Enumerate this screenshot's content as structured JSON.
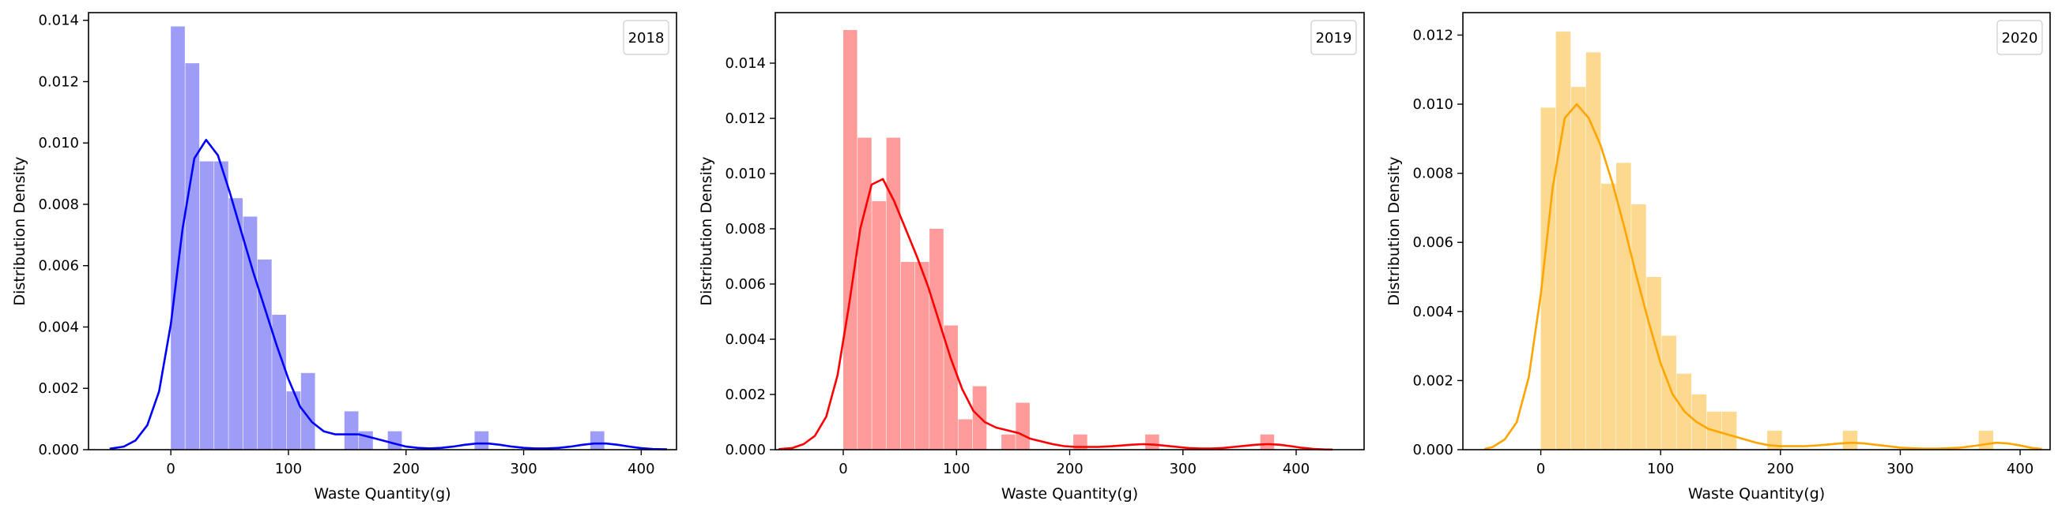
{
  "chart_data": [
    {
      "type": "bar",
      "legend": "2018",
      "legend_position": "top-right",
      "xlabel": "Waste Quantity(g)",
      "ylabel": "Distribution Density",
      "xlim": [
        -70,
        430
      ],
      "ylim": [
        0,
        0.01425
      ],
      "xticks": [
        0,
        100,
        200,
        300,
        400
      ],
      "yticks": [
        0.0,
        0.002,
        0.004,
        0.006,
        0.008,
        0.01,
        0.012,
        0.014
      ],
      "ytick_labels": [
        "0.000",
        "0.002",
        "0.004",
        "0.006",
        "0.008",
        "0.010",
        "0.012",
        "0.014"
      ],
      "bins": {
        "start": 0,
        "width": 12.3,
        "values": [
          0.0138,
          0.0126,
          0.0094,
          0.0094,
          0.0082,
          0.0076,
          0.0062,
          0.0044,
          0.0019,
          0.0025,
          0,
          0,
          0.00125,
          0.0006,
          0,
          0.0006,
          0,
          0,
          0,
          0,
          0,
          0.0006,
          0,
          0,
          0,
          0,
          0,
          0,
          0,
          0.0006
        ]
      },
      "kde": {
        "x": [
          -52,
          -40,
          -30,
          -20,
          -10,
          0,
          10,
          20,
          30,
          40,
          50,
          60,
          70,
          80,
          90,
          100,
          110,
          120,
          130,
          140,
          150,
          160,
          170,
          180,
          190,
          200,
          210,
          220,
          230,
          240,
          250,
          260,
          270,
          280,
          290,
          300,
          310,
          320,
          330,
          340,
          350,
          360,
          370,
          380,
          390,
          400,
          410,
          422
        ],
        "y": [
          3e-05,
          0.0001,
          0.0003,
          0.0008,
          0.0019,
          0.0041,
          0.0072,
          0.0095,
          0.0101,
          0.0096,
          0.0084,
          0.0071,
          0.0058,
          0.0046,
          0.0034,
          0.0023,
          0.0014,
          0.0009,
          0.0006,
          0.0005,
          0.0005,
          0.0005,
          0.0004,
          0.0003,
          0.0002,
          0.0001,
          6e-05,
          4e-05,
          6e-05,
          0.0001,
          0.00016,
          0.0002,
          0.0002,
          0.00016,
          0.0001,
          6e-05,
          4e-05,
          4e-05,
          6e-05,
          0.0001,
          0.00016,
          0.0002,
          0.0002,
          0.00016,
          0.0001,
          5e-05,
          2e-05,
          1e-05
        ]
      },
      "colors": {
        "bar": "#9d9df8",
        "line": "#0000ff"
      }
    },
    {
      "type": "bar",
      "legend": "2019",
      "legend_position": "top-right",
      "xlabel": "Waste Quantity(g)",
      "ylabel": "Distribution Density",
      "xlim": [
        -60,
        460
      ],
      "ylim": [
        0,
        0.01583
      ],
      "xticks": [
        0,
        100,
        200,
        300,
        400
      ],
      "yticks": [
        0.0,
        0.002,
        0.004,
        0.006,
        0.008,
        0.01,
        0.012,
        0.014
      ],
      "ytick_labels": [
        "0.000",
        "0.002",
        "0.004",
        "0.006",
        "0.008",
        "0.010",
        "0.012",
        "0.014"
      ],
      "bins": {
        "start": 0,
        "width": 12.7,
        "values": [
          0.0152,
          0.0113,
          0.009,
          0.0113,
          0.0068,
          0.0068,
          0.008,
          0.0045,
          0.0011,
          0.0023,
          0,
          0.00055,
          0.0017,
          0,
          0,
          0,
          0.00055,
          0,
          0,
          0,
          0,
          0.00055,
          0,
          0,
          0,
          0,
          0,
          0,
          0,
          0.00055
        ]
      },
      "kde": {
        "x": [
          -57,
          -45,
          -35,
          -25,
          -15,
          -5,
          5,
          15,
          25,
          35,
          45,
          55,
          65,
          75,
          85,
          95,
          105,
          115,
          125,
          135,
          145,
          155,
          165,
          175,
          185,
          195,
          205,
          215,
          225,
          235,
          245,
          255,
          265,
          275,
          285,
          295,
          305,
          315,
          325,
          335,
          345,
          355,
          365,
          375,
          385,
          395,
          405,
          415,
          425,
          432
        ],
        "y": [
          2e-05,
          6e-05,
          0.0002,
          0.0005,
          0.0012,
          0.0027,
          0.0052,
          0.008,
          0.0096,
          0.0098,
          0.009,
          0.008,
          0.007,
          0.0059,
          0.0046,
          0.0033,
          0.0022,
          0.0014,
          0.001,
          0.0008,
          0.0007,
          0.0006,
          0.0004,
          0.0003,
          0.0002,
          0.00013,
          0.0001,
          0.0001,
          0.0001,
          0.00012,
          0.00015,
          0.00018,
          0.0002,
          0.00018,
          0.00014,
          0.0001,
          6e-05,
          4e-05,
          4e-05,
          6e-05,
          0.0001,
          0.00014,
          0.00018,
          0.0002,
          0.00018,
          0.00013,
          7e-05,
          3e-05,
          1e-05,
          5e-06
        ]
      },
      "colors": {
        "bar": "#ff9b9b",
        "line": "#ff0000"
      }
    },
    {
      "type": "bar",
      "legend": "2020",
      "legend_position": "top-right",
      "xlabel": "Waste Quantity(g)",
      "ylabel": "Distribution Density",
      "xlim": [
        -65,
        425
      ],
      "ylim": [
        0,
        0.01265
      ],
      "xticks": [
        0,
        100,
        200,
        300,
        400
      ],
      "yticks": [
        0.0,
        0.002,
        0.004,
        0.006,
        0.008,
        0.01,
        0.012
      ],
      "ytick_labels": [
        "0.000",
        "0.002",
        "0.004",
        "0.006",
        "0.008",
        "0.010",
        "0.012"
      ],
      "bins": {
        "start": 0,
        "width": 12.6,
        "values": [
          0.0099,
          0.0121,
          0.0105,
          0.0115,
          0.0077,
          0.0083,
          0.0071,
          0.005,
          0.0033,
          0.0022,
          0.0016,
          0.0011,
          0.0011,
          0,
          0,
          0.00055,
          0,
          0,
          0,
          0,
          0.00055,
          0,
          0,
          0,
          0,
          0,
          0,
          0,
          0,
          0.00055
        ]
      },
      "kde": {
        "x": [
          -47,
          -40,
          -30,
          -20,
          -10,
          0,
          10,
          20,
          30,
          40,
          50,
          60,
          70,
          80,
          90,
          100,
          110,
          120,
          130,
          140,
          150,
          160,
          170,
          180,
          190,
          200,
          210,
          220,
          230,
          240,
          250,
          260,
          270,
          280,
          290,
          300,
          310,
          320,
          330,
          340,
          350,
          360,
          370,
          380,
          390,
          400,
          410,
          418
        ],
        "y": [
          2e-05,
          8e-05,
          0.0003,
          0.0008,
          0.0021,
          0.0045,
          0.0076,
          0.0096,
          0.01,
          0.0096,
          0.0088,
          0.0077,
          0.0064,
          0.005,
          0.0037,
          0.0025,
          0.0016,
          0.0011,
          0.0008,
          0.0006,
          0.0005,
          0.0004,
          0.0003,
          0.0002,
          0.00013,
          0.0001,
          0.0001,
          0.0001,
          0.00012,
          0.00015,
          0.00018,
          0.0002,
          0.00018,
          0.00014,
          0.0001,
          6e-05,
          4e-05,
          3e-05,
          3e-05,
          4e-05,
          6e-05,
          0.0001,
          0.00015,
          0.0002,
          0.00018,
          0.00012,
          5e-05,
          2e-05
        ]
      },
      "colors": {
        "bar": "#fdd88f",
        "line": "#ffa500"
      }
    }
  ]
}
